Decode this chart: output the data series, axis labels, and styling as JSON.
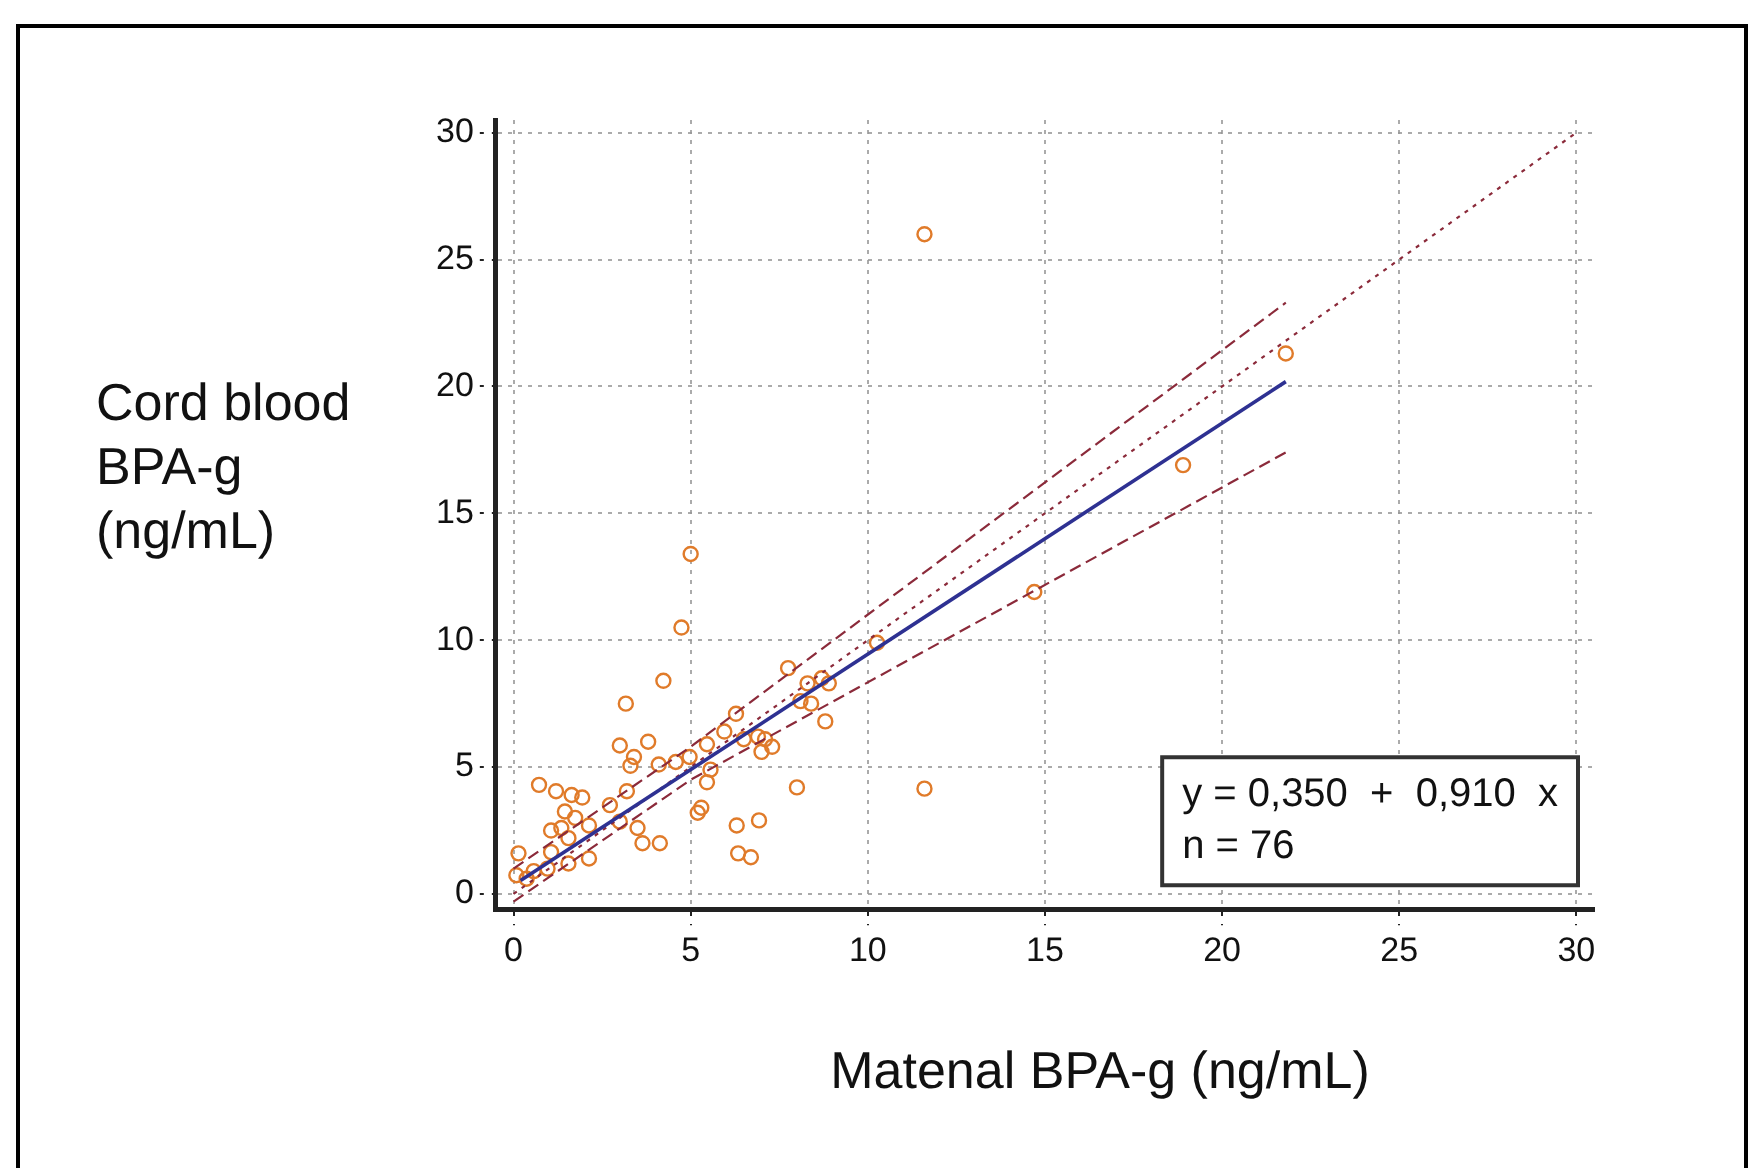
{
  "chart_data": {
    "type": "scatter",
    "xlabel": "Matenal BPA-g (ng/mL)",
    "ylabel": "Cord blood\nBPA-g\n(ng/mL)",
    "xlim": [
      -0.5,
      30.5
    ],
    "ylim": [
      -0.6,
      30.5
    ],
    "xticks": [
      0,
      5,
      10,
      15,
      20,
      25,
      30
    ],
    "yticks": [
      0,
      5,
      10,
      15,
      20,
      25,
      30
    ],
    "grid": true,
    "legend": false,
    "annotations": [
      "y = 0,350  +  0,910  x",
      "n = 76"
    ],
    "series": [
      {
        "type": "scatter",
        "marker": "circle",
        "color": "#e07b2a",
        "x": [
          11.6,
          21.8,
          18.9,
          14.7,
          5.0,
          11.6,
          10.26,
          4.74,
          4.23,
          3.17,
          3.8,
          3.0,
          3.4,
          3.3,
          4.1,
          4.58,
          4.97,
          5.46,
          5.95,
          6.28,
          5.56,
          5.3,
          5.2,
          6.3,
          6.93,
          6.34,
          6.7,
          8.0,
          8.8,
          7.75,
          8.3,
          8.7,
          8.1,
          8.4,
          8.9,
          6.5,
          6.9,
          7.1,
          7.3,
          7.0,
          5.46,
          0.72,
          1.2,
          1.64,
          1.94,
          1.45,
          1.74,
          1.06,
          1.35,
          1.55,
          2.13,
          2.72,
          3.2,
          3.0,
          3.5,
          3.64,
          4.13,
          2.13,
          1.55,
          0.96,
          0.57,
          0.14,
          0.08,
          0.37,
          1.06
        ],
        "values": [
          26.0,
          21.3,
          16.9,
          11.9,
          13.4,
          4.15,
          9.9,
          10.5,
          8.4,
          7.5,
          6.0,
          5.85,
          5.4,
          5.05,
          5.1,
          5.2,
          5.4,
          5.9,
          6.4,
          7.1,
          4.9,
          3.4,
          3.2,
          2.7,
          2.9,
          1.6,
          1.45,
          4.2,
          6.8,
          8.9,
          8.3,
          8.5,
          7.6,
          7.5,
          8.3,
          6.1,
          6.2,
          6.1,
          5.8,
          5.6,
          4.4,
          4.3,
          4.05,
          3.9,
          3.8,
          3.25,
          3.0,
          2.5,
          2.6,
          2.2,
          2.7,
          3.5,
          4.05,
          2.85,
          2.6,
          2.0,
          2.0,
          1.4,
          1.2,
          1.0,
          0.9,
          1.6,
          0.74,
          0.6,
          1.65
        ]
      },
      {
        "type": "line",
        "line_style": "solid",
        "color": "#2e3192",
        "x": [
          0.2,
          21.8
        ],
        "values": [
          0.53,
          20.19
        ]
      },
      {
        "type": "line",
        "line_style": "dashed",
        "color": "#8b2a3a",
        "x": [
          0,
          5,
          21.8
        ],
        "values": [
          1.0,
          5.8,
          23.3
        ]
      },
      {
        "type": "line",
        "line_style": "dashed",
        "color": "#8b2a3a",
        "x": [
          0,
          5,
          21.8
        ],
        "values": [
          -0.3,
          4.5,
          17.4
        ]
      },
      {
        "type": "line",
        "line_style": "dotted",
        "color": "#8b2a3a",
        "x": [
          0,
          30
        ],
        "values": [
          0,
          30
        ]
      }
    ]
  }
}
